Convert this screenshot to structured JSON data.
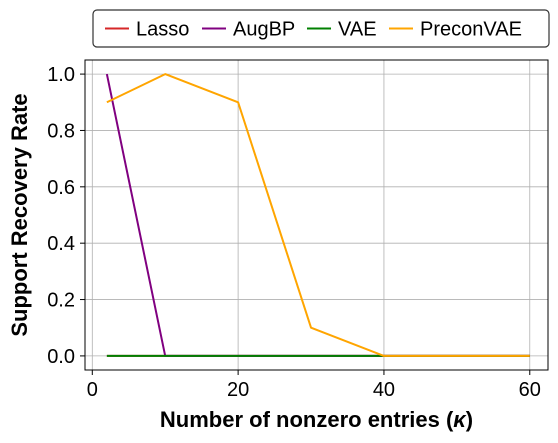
{
  "chart_data": {
    "type": "line",
    "xlabel": "Number of nonzero entries (",
    "xlabel_symbol": "κ",
    "xlabel_suffix": ")",
    "ylabel": "Support Recovery Rate",
    "xlim": [
      -1,
      62.5
    ],
    "ylim": [
      -0.05,
      1.05
    ],
    "xticks": [
      0,
      20,
      40,
      60
    ],
    "xtick_labels": [
      "0",
      "20",
      "40",
      "60"
    ],
    "yticks": [
      0.0,
      0.2,
      0.4,
      0.6,
      0.8,
      1.0
    ],
    "ytick_labels": [
      "0.0",
      "0.2",
      "0.4",
      "0.6",
      "0.8",
      "1.0"
    ],
    "grid": true,
    "legend_position": "top",
    "series": [
      {
        "name": "Lasso",
        "color": "#d62728",
        "x": [
          2,
          10,
          20,
          30,
          40,
          60
        ],
        "y": [
          0,
          0,
          0,
          0,
          0,
          0
        ]
      },
      {
        "name": "AugBP",
        "color": "#800080",
        "x": [
          2,
          10,
          20,
          30,
          40,
          60
        ],
        "y": [
          1.0,
          0,
          0,
          0,
          0,
          0
        ]
      },
      {
        "name": "VAE",
        "color": "#008000",
        "x": [
          2,
          10,
          20,
          30,
          40,
          60
        ],
        "y": [
          0,
          0,
          0,
          0,
          0,
          0
        ]
      },
      {
        "name": "PreconVAE",
        "color": "#ffa500",
        "x": [
          2,
          10,
          20,
          30,
          40,
          60
        ],
        "y": [
          0.9,
          1.0,
          0.9,
          0.1,
          0,
          0
        ]
      }
    ]
  }
}
